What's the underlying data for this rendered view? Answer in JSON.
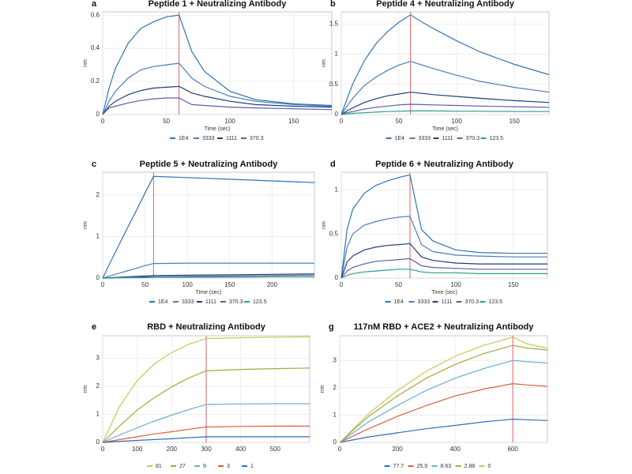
{
  "chart_data": [
    {
      "type": "line",
      "panel": "a",
      "title": "Peptide 1 + Neutralizing Antibody",
      "x_label": "Time (sec)",
      "y_label": "nm",
      "xlim": [
        0,
        180
      ],
      "xticks": [
        0,
        50,
        100,
        150
      ],
      "ylim": [
        0,
        0.62
      ],
      "yticks": [
        0,
        0.2,
        0.4,
        0.6
      ],
      "grid": true,
      "marker_x": 60,
      "marker_color": "#d9534f",
      "x": [
        0,
        5,
        10,
        20,
        30,
        40,
        50,
        60,
        70,
        80,
        100,
        120,
        150,
        180
      ],
      "series": [
        {
          "name": "1E4",
          "color": "#2e75b6",
          "values": [
            0,
            0.16,
            0.28,
            0.43,
            0.52,
            0.56,
            0.59,
            0.6,
            0.38,
            0.26,
            0.14,
            0.09,
            0.065,
            0.055
          ]
        },
        {
          "name": "3333",
          "color": "#4a7ebb",
          "values": [
            0,
            0.08,
            0.14,
            0.22,
            0.27,
            0.29,
            0.3,
            0.31,
            0.22,
            0.17,
            0.11,
            0.08,
            0.06,
            0.05
          ]
        },
        {
          "name": "1111",
          "color": "#1f3f7a",
          "values": [
            0,
            0.05,
            0.08,
            0.12,
            0.145,
            0.16,
            0.165,
            0.17,
            0.13,
            0.11,
            0.08,
            0.06,
            0.05,
            0.045
          ]
        },
        {
          "name": "370.3",
          "color": "#5b5ea6",
          "values": [
            0,
            0.04,
            0.05,
            0.07,
            0.085,
            0.095,
            0.1,
            0.1,
            0.06,
            0.055,
            0.045,
            0.04,
            0.035,
            0.03
          ]
        }
      ]
    },
    {
      "type": "line",
      "panel": "b",
      "title": "Peptide 4 + Neutralizing Antibody",
      "x_label": "Time (sec)",
      "y_label": "nm",
      "xlim": [
        0,
        180
      ],
      "xticks": [
        0,
        50,
        100,
        150
      ],
      "ylim": [
        0,
        1.7
      ],
      "yticks": [
        0,
        0.5,
        1,
        1.5
      ],
      "grid": true,
      "marker_x": 60,
      "marker_color": "#d9534f",
      "x": [
        0,
        5,
        10,
        20,
        30,
        40,
        50,
        60,
        70,
        80,
        100,
        120,
        150,
        180
      ],
      "series": [
        {
          "name": "1E4",
          "color": "#2e75b6",
          "values": [
            0,
            0.26,
            0.51,
            0.89,
            1.17,
            1.37,
            1.53,
            1.65,
            1.53,
            1.42,
            1.22,
            1.04,
            0.83,
            0.66
          ]
        },
        {
          "name": "3333",
          "color": "#4a7ebb",
          "values": [
            0,
            0.14,
            0.27,
            0.48,
            0.62,
            0.73,
            0.82,
            0.88,
            0.82,
            0.76,
            0.65,
            0.55,
            0.45,
            0.37
          ]
        },
        {
          "name": "1111",
          "color": "#1f3f7a",
          "values": [
            0,
            0.06,
            0.11,
            0.2,
            0.26,
            0.31,
            0.34,
            0.37,
            0.35,
            0.33,
            0.3,
            0.27,
            0.23,
            0.2
          ]
        },
        {
          "name": "370.3",
          "color": "#5b5ea6",
          "values": [
            0,
            0.03,
            0.05,
            0.09,
            0.12,
            0.14,
            0.16,
            0.17,
            0.165,
            0.16,
            0.15,
            0.14,
            0.13,
            0.12
          ]
        },
        {
          "name": "123.5",
          "color": "#2a9d8f",
          "values": [
            0,
            0.01,
            0.02,
            0.03,
            0.04,
            0.05,
            0.055,
            0.06,
            0.06,
            0.06,
            0.055,
            0.055,
            0.05,
            0.05
          ]
        }
      ]
    },
    {
      "type": "line",
      "panel": "c",
      "title": "Peptide 5 + Neutralizing Antibody",
      "x_label": "Time (sec)",
      "y_label": "nm",
      "xlim": [
        0,
        250
      ],
      "xticks": [
        0,
        50,
        100,
        150,
        200
      ],
      "ylim": [
        0,
        2.55
      ],
      "yticks": [
        0,
        1,
        2
      ],
      "grid": true,
      "marker_x": 60,
      "marker_color": "#d9534f",
      "x": [
        0,
        10,
        20,
        30,
        40,
        50,
        60,
        100,
        150,
        200,
        250
      ],
      "series": [
        {
          "name": "1E4",
          "color": "#2e75b6",
          "values": [
            0,
            0.42,
            0.83,
            1.24,
            1.64,
            2.05,
            2.45,
            2.42,
            2.38,
            2.34,
            2.3
          ]
        },
        {
          "name": "3333",
          "color": "#4a7ebb",
          "values": [
            0,
            0.06,
            0.12,
            0.18,
            0.24,
            0.3,
            0.35,
            0.36,
            0.36,
            0.36,
            0.36
          ]
        },
        {
          "name": "1111",
          "color": "#1f3f7a",
          "values": [
            0,
            0.01,
            0.02,
            0.03,
            0.04,
            0.05,
            0.06,
            0.07,
            0.08,
            0.09,
            0.1
          ]
        },
        {
          "name": "370.3",
          "color": "#5b5ea6",
          "values": [
            0,
            0.01,
            0.01,
            0.02,
            0.02,
            0.03,
            0.03,
            0.04,
            0.05,
            0.06,
            0.07
          ]
        },
        {
          "name": "123.5",
          "color": "#2a9d8f",
          "values": [
            0,
            0,
            0.01,
            0.01,
            0.01,
            0.01,
            0.02,
            0.02,
            0.02,
            0.03,
            0.03
          ]
        }
      ]
    },
    {
      "type": "line",
      "panel": "d",
      "title": "Peptide 6 + Neutralizing Antibody",
      "x_label": "Time (sec)",
      "y_label": "nm",
      "xlim": [
        0,
        180
      ],
      "xticks": [
        0,
        50,
        100,
        150
      ],
      "ylim": [
        0,
        1.2
      ],
      "yticks": [
        0,
        0.5,
        1
      ],
      "grid": true,
      "marker_x": 60,
      "marker_color": "#d9534f",
      "x": [
        0,
        5,
        10,
        20,
        30,
        40,
        50,
        60,
        70,
        80,
        100,
        120,
        150,
        180
      ],
      "series": [
        {
          "name": "1E4",
          "color": "#2e75b6",
          "values": [
            0,
            0.55,
            0.78,
            0.96,
            1.05,
            1.1,
            1.14,
            1.17,
            0.55,
            0.42,
            0.32,
            0.29,
            0.28,
            0.28
          ]
        },
        {
          "name": "3333",
          "color": "#4a7ebb",
          "values": [
            0,
            0.35,
            0.5,
            0.6,
            0.64,
            0.67,
            0.69,
            0.7,
            0.38,
            0.3,
            0.26,
            0.25,
            0.24,
            0.24
          ]
        },
        {
          "name": "1111",
          "color": "#1f3f7a",
          "values": [
            0,
            0.18,
            0.25,
            0.32,
            0.35,
            0.37,
            0.38,
            0.39,
            0.24,
            0.2,
            0.17,
            0.16,
            0.16,
            0.16
          ]
        },
        {
          "name": "370.3",
          "color": "#5b5ea6",
          "values": [
            0,
            0.08,
            0.12,
            0.16,
            0.19,
            0.2,
            0.21,
            0.22,
            0.14,
            0.12,
            0.11,
            0.1,
            0.1,
            0.1
          ]
        },
        {
          "name": "123.5",
          "color": "#2a9d8f",
          "values": [
            0,
            0.03,
            0.05,
            0.07,
            0.08,
            0.09,
            0.1,
            0.1,
            0.07,
            0.06,
            0.06,
            0.05,
            0.05,
            0.05
          ]
        }
      ]
    },
    {
      "type": "line",
      "panel": "e",
      "title": "RBD + Neutralizing Antibody",
      "y_label": "nm",
      "xlim": [
        0,
        600
      ],
      "xticks": [
        0,
        100,
        200,
        300,
        400,
        500
      ],
      "ylim": [
        0,
        3.8
      ],
      "yticks": [
        0,
        1,
        2,
        3
      ],
      "grid": true,
      "marker_x": 300,
      "marker_color": "#d9534f",
      "x": [
        0,
        50,
        100,
        150,
        200,
        250,
        300,
        400,
        500,
        600
      ],
      "series": [
        {
          "name": "81",
          "color": "#c9c75a",
          "values": [
            0,
            1.3,
            2.2,
            2.8,
            3.2,
            3.5,
            3.7,
            3.73,
            3.75,
            3.76
          ]
        },
        {
          "name": "27",
          "color": "#a9a83c",
          "values": [
            0,
            0.6,
            1.15,
            1.6,
            1.98,
            2.3,
            2.55,
            2.6,
            2.63,
            2.65
          ]
        },
        {
          "name": "9",
          "color": "#6baed6",
          "values": [
            0,
            0.27,
            0.52,
            0.76,
            0.97,
            1.17,
            1.35,
            1.37,
            1.38,
            1.38
          ]
        },
        {
          "name": "3",
          "color": "#d9603b",
          "values": [
            0,
            0.1,
            0.2,
            0.3,
            0.38,
            0.47,
            0.55,
            0.57,
            0.58,
            0.58
          ]
        },
        {
          "name": "1",
          "color": "#2c6fbb",
          "values": [
            0,
            0.04,
            0.07,
            0.1,
            0.13,
            0.17,
            0.2,
            0.2,
            0.2,
            0.2
          ]
        }
      ]
    },
    {
      "type": "line",
      "panel": "g",
      "title": "117nM RBD + ACE2 + Neutralizing Antibody",
      "y_label": "nm",
      "xlim": [
        0,
        720
      ],
      "xticks": [
        0,
        200,
        400,
        600
      ],
      "ylim": [
        0,
        3.9
      ],
      "yticks": [
        0,
        1,
        2,
        3
      ],
      "grid": true,
      "marker_x": 600,
      "marker_color": "#d9534f",
      "x": [
        0,
        100,
        200,
        300,
        400,
        500,
        600,
        650,
        720
      ],
      "series": [
        {
          "name": "77.7",
          "color": "#2c6fbb",
          "values": [
            0,
            0.2,
            0.35,
            0.5,
            0.62,
            0.75,
            0.85,
            0.83,
            0.8
          ]
        },
        {
          "name": "25.9",
          "color": "#d9603b",
          "values": [
            0,
            0.5,
            0.95,
            1.35,
            1.7,
            1.95,
            2.15,
            2.1,
            2.05
          ]
        },
        {
          "name": "8.63",
          "color": "#6baed6",
          "values": [
            0,
            0.75,
            1.35,
            1.9,
            2.35,
            2.7,
            3.0,
            2.95,
            2.9
          ]
        },
        {
          "name": "2.88",
          "color": "#a9a83c",
          "values": [
            0,
            0.95,
            1.7,
            2.35,
            2.85,
            3.25,
            3.55,
            3.45,
            3.38
          ]
        },
        {
          "name": "0",
          "color": "#c9c75a",
          "values": [
            0,
            1.05,
            1.9,
            2.6,
            3.15,
            3.55,
            3.85,
            3.6,
            3.45
          ]
        }
      ]
    }
  ]
}
